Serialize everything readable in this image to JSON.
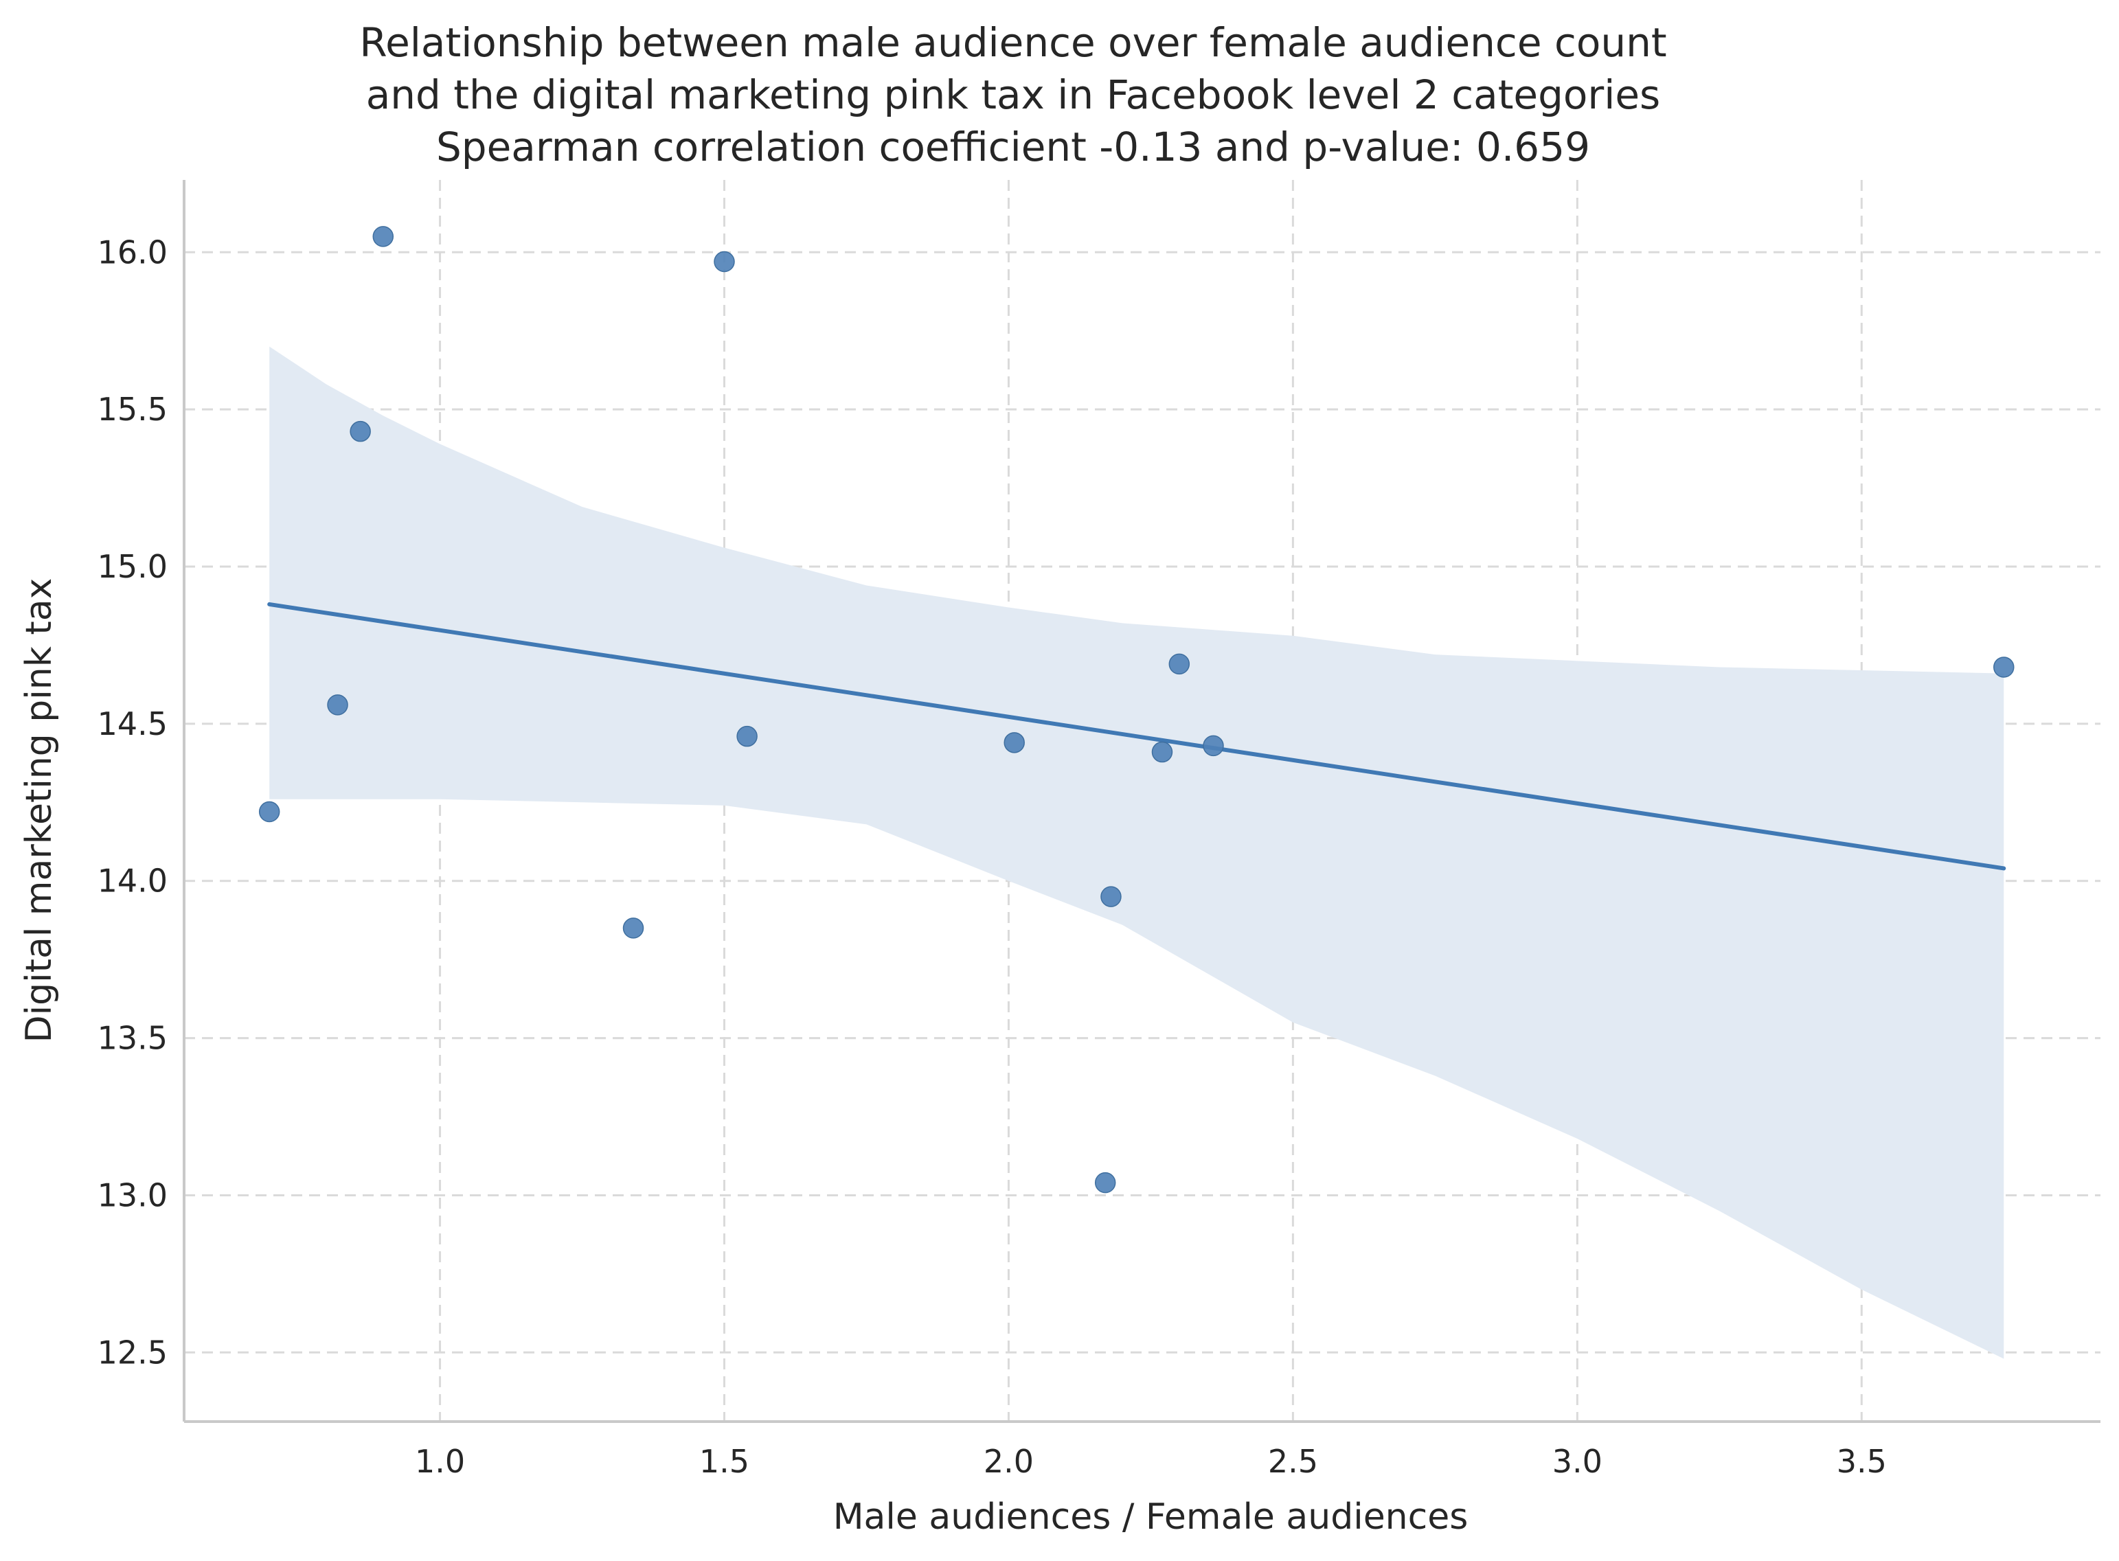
{
  "chart_data": {
    "type": "scatter",
    "title_lines": [
      "Relationship between male audience over female audience count",
      "and the digital marketing pink tax in Facebook level 2 categories",
      "Spearman correlation coefficient -0.13 and p-value: 0.659"
    ],
    "xlabel": "Male audiences / Female audiences",
    "ylabel": "Digital marketing pink tax",
    "xlim": [
      0.55,
      3.92
    ],
    "ylim": [
      12.28,
      16.23
    ],
    "xticks": [
      1.0,
      1.5,
      2.0,
      2.5,
      3.0,
      3.5
    ],
    "xtick_labels": [
      "1.0",
      "1.5",
      "2.0",
      "2.5",
      "3.0",
      "3.5"
    ],
    "yticks": [
      12.5,
      13.0,
      13.5,
      14.0,
      14.5,
      15.0,
      15.5,
      16.0
    ],
    "ytick_labels": [
      "12.5",
      "13.0",
      "13.5",
      "14.0",
      "14.5",
      "15.0",
      "15.5",
      "16.0"
    ],
    "grid": true,
    "points": [
      {
        "x": 0.7,
        "y": 14.22
      },
      {
        "x": 0.82,
        "y": 14.56
      },
      {
        "x": 0.86,
        "y": 15.43
      },
      {
        "x": 0.9,
        "y": 16.05
      },
      {
        "x": 1.34,
        "y": 13.85
      },
      {
        "x": 1.5,
        "y": 15.97
      },
      {
        "x": 1.54,
        "y": 14.46
      },
      {
        "x": 2.01,
        "y": 14.44
      },
      {
        "x": 2.17,
        "y": 13.04
      },
      {
        "x": 2.18,
        "y": 13.95
      },
      {
        "x": 2.27,
        "y": 14.41
      },
      {
        "x": 2.3,
        "y": 14.69
      },
      {
        "x": 2.36,
        "y": 14.43
      },
      {
        "x": 3.75,
        "y": 14.68
      }
    ],
    "regression_line": {
      "x": [
        0.7,
        3.75
      ],
      "y": [
        14.88,
        14.04
      ]
    },
    "confidence_band": {
      "x": [
        0.7,
        0.75,
        0.8,
        0.9,
        1.0,
        1.25,
        1.5,
        1.75,
        2.0,
        2.2,
        2.5,
        2.75,
        3.0,
        3.25,
        3.5,
        3.75
      ],
      "upper": [
        15.7,
        15.64,
        15.58,
        15.48,
        15.39,
        15.19,
        15.06,
        14.94,
        14.87,
        14.82,
        14.78,
        14.72,
        14.7,
        14.68,
        14.67,
        14.66
      ],
      "lower": [
        14.26,
        14.26,
        14.26,
        14.26,
        14.26,
        14.25,
        14.24,
        14.18,
        14.0,
        13.86,
        13.55,
        13.38,
        13.18,
        12.95,
        12.7,
        12.48
      ]
    },
    "colors": {
      "points": "#4f81b7",
      "line": "#4079b4",
      "band": "#e2eaf3",
      "grid": "#dadada",
      "axis": "#c9c9c9"
    }
  }
}
